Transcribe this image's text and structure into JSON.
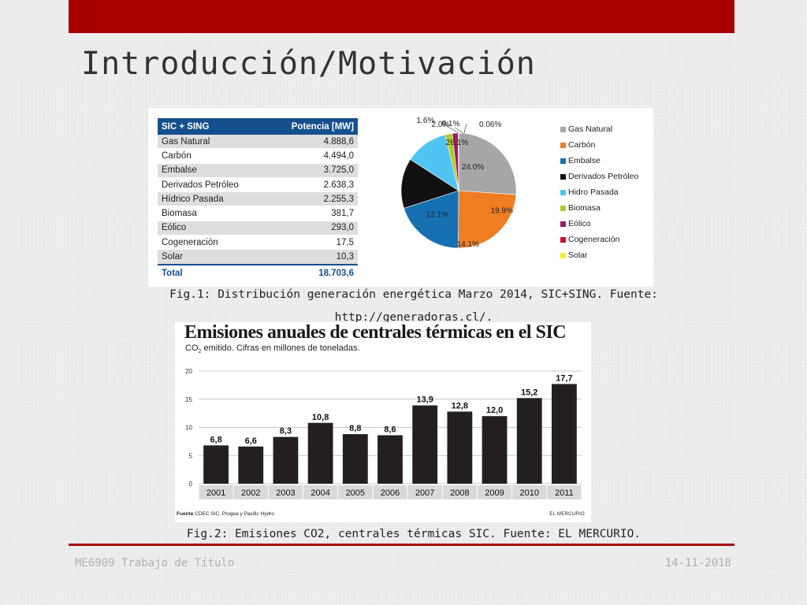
{
  "slide": {
    "title": "Introducción/Motivación",
    "footer_left": "ME6909 Trabajo de Título",
    "footer_right": "14-11-2018",
    "accent_color": "#a80000"
  },
  "fig1": {
    "caption_line1": "Fig.1: Distribución generación energética Marzo 2014, SIC+SING. Fuente:",
    "caption_line2": "http://generadoras.cl/.",
    "table": {
      "header": [
        "SIC + SING",
        "Potencia [MW]"
      ],
      "rows": [
        [
          "Gas Natural",
          "4.888,6"
        ],
        [
          "Carbón",
          "4.494,0"
        ],
        [
          "Embalse",
          "3.725,0"
        ],
        [
          "Derivados Petróleo",
          "2.638,3"
        ],
        [
          "Hídrico Pasada",
          "2.255,3"
        ],
        [
          "Biomasa",
          "381,7"
        ],
        [
          "Eólico",
          "293,0"
        ],
        [
          "Cogeneración",
          "17,5"
        ],
        [
          "Solar",
          "10,3"
        ]
      ],
      "total": [
        "Total",
        "18.703,6"
      ],
      "header_color": "#15508e"
    }
  },
  "fig2": {
    "caption": "Fig.2: Emisiones CO2, centrales térmicas SIC. Fuente: EL MERCURIO.",
    "title": "Emisiones anuales de centrales térmicas en el SIC",
    "subtitle_pre": "CO",
    "subtitle_sub": "2",
    "subtitle_post": " emitido. Cifras en millones de toneladas.",
    "source_label": "Fuente",
    "source_text": " CDEC SIC, Progea y Pacific Hydro",
    "publisher": "EL MERCURIO"
  },
  "chart_data": [
    {
      "type": "pie",
      "labels": [
        "Gas Natural",
        "Carbón",
        "Embalse",
        "Derivados Petróleo",
        "Hidro Pasada",
        "Biomasa",
        "Eólico",
        "Cogeneración",
        "Solar"
      ],
      "values": [
        26.1,
        24.0,
        19.9,
        14.1,
        12.1,
        2.0,
        1.6,
        0.1,
        0.06
      ],
      "value_labels": [
        "26.1%",
        "24.0%",
        "19.9%",
        "14.1%",
        "12.1%",
        "2.0%",
        "1.6%",
        "0.1%",
        "0.06%"
      ],
      "colors": [
        "#a6a6a6",
        "#ef7d22",
        "#1770b1",
        "#111111",
        "#4fc4f2",
        "#b4c925",
        "#9b1a5e",
        "#c8102e",
        "#f2ee2e"
      ],
      "legend_position": "right"
    },
    {
      "type": "bar",
      "categories": [
        "2001",
        "2002",
        "2003",
        "2004",
        "2005",
        "2006",
        "2007",
        "2008",
        "2009",
        "2010",
        "2011"
      ],
      "values": [
        6.8,
        6.6,
        8.3,
        10.8,
        8.8,
        8.6,
        13.9,
        12.8,
        12.0,
        15.2,
        17.7
      ],
      "value_labels": [
        "6,8",
        "6,6",
        "8,3",
        "10,8",
        "8,8",
        "8,6",
        "13,9",
        "12,8",
        "12,0",
        "15,2",
        "17,7"
      ],
      "yticks": [
        "0",
        "5",
        "10",
        "15",
        "20"
      ],
      "ylim": [
        0,
        20
      ],
      "grid": true,
      "bar_color": "#231f20"
    }
  ]
}
